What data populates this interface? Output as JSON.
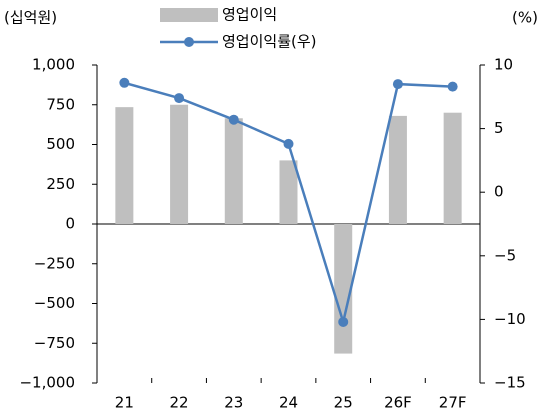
{
  "chart_data": {
    "type": "combo",
    "y_unit_label": "(십억원)",
    "y2_unit_label": "(%)",
    "categories": [
      "21",
      "22",
      "23",
      "24",
      "25",
      "26F",
      "27F"
    ],
    "series": [
      {
        "name": "영업이익",
        "type": "bar",
        "color": "#bfbfbf",
        "values": [
          735,
          750,
          665,
          400,
          -815,
          680,
          700
        ]
      },
      {
        "name": "영업이익률(우)",
        "type": "line",
        "axis": "y2",
        "color": "#4a7ebb",
        "values": [
          8.6,
          7.4,
          5.7,
          3.8,
          -10.2,
          8.5,
          8.3
        ]
      }
    ],
    "ylim": [
      -1000,
      1000
    ],
    "yticks": [
      {
        "value": -1000,
        "label": "−1,000"
      },
      {
        "value": -750,
        "label": "−750"
      },
      {
        "value": -500,
        "label": "−500"
      },
      {
        "value": -250,
        "label": "−250"
      },
      0,
      250,
      500,
      750,
      {
        "value": 1000,
        "label": "1,000"
      }
    ],
    "y2lim": [
      -15,
      10
    ],
    "y2ticks": [
      {
        "value": -15,
        "label": "−15"
      },
      {
        "value": -10,
        "label": "−10"
      },
      {
        "value": -5,
        "label": "−5"
      },
      0,
      5,
      10
    ],
    "grid": false,
    "legend": "top"
  }
}
